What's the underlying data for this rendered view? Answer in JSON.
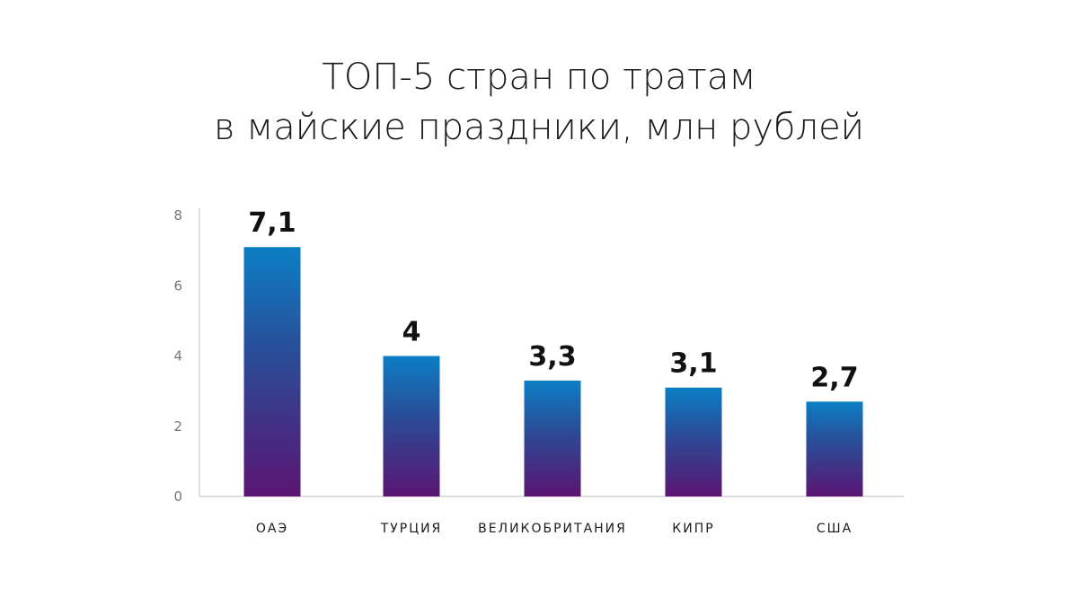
{
  "chart_data": {
    "type": "bar",
    "title": "ТОП-5 стран по тратам в майские праздники, млн рублей",
    "title_lines": [
      "ТОП-5 стран по тратам",
      "в майские праздники, млн рублей"
    ],
    "categories": [
      "ОАЭ",
      "ТУРЦИЯ",
      "ВЕЛИКОБРИТАНИЯ",
      "КИПР",
      "США"
    ],
    "values": [
      7.1,
      4,
      3.3,
      3.1,
      2.7
    ],
    "value_labels": [
      "7,1",
      "4",
      "3,3",
      "3,1",
      "2,7"
    ],
    "ylim": [
      0,
      8
    ],
    "yticks": [
      0,
      2,
      4,
      6,
      8
    ],
    "xlabel": "",
    "ylabel": "",
    "grid": false,
    "legend": "none",
    "colors": {
      "bar_gradient_top": "#0b7fc4",
      "bar_gradient_mid": "#2c4a96",
      "bar_gradient_bottom": "#5a1572",
      "axis": "#bbbbbb"
    }
  }
}
